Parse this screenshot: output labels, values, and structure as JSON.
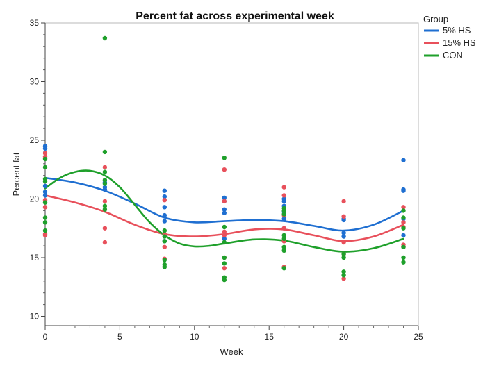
{
  "chart_data": {
    "type": "scatter",
    "title": "Percent fat across experimental week",
    "xlabel": "Week",
    "ylabel": "Percent fat",
    "xlim": [
      0,
      25
    ],
    "ylim": [
      9.2,
      35
    ],
    "x_ticks": [
      0,
      5,
      10,
      15,
      20,
      25
    ],
    "y_ticks": [
      10,
      15,
      20,
      25,
      30,
      35
    ],
    "legend_title": "Group",
    "legend_position": "right",
    "series": [
      {
        "name": "5% HS",
        "color": "#1f6fd1",
        "points": [
          {
            "x": 0,
            "y": 24.5
          },
          {
            "x": 0,
            "y": 24.3
          },
          {
            "x": 0,
            "y": 21.1
          },
          {
            "x": 0,
            "y": 20.6
          },
          {
            "x": 0,
            "y": 20.3
          },
          {
            "x": 4,
            "y": 21.4
          },
          {
            "x": 4,
            "y": 21.0
          },
          {
            "x": 4,
            "y": 20.8
          },
          {
            "x": 8,
            "y": 20.7
          },
          {
            "x": 8,
            "y": 20.2
          },
          {
            "x": 8,
            "y": 19.3
          },
          {
            "x": 8,
            "y": 18.6
          },
          {
            "x": 8,
            "y": 18.1
          },
          {
            "x": 8,
            "y": 16.4
          },
          {
            "x": 12,
            "y": 20.1
          },
          {
            "x": 12,
            "y": 19.8
          },
          {
            "x": 12,
            "y": 19.1
          },
          {
            "x": 12,
            "y": 18.8
          },
          {
            "x": 12,
            "y": 16.6
          },
          {
            "x": 16,
            "y": 20.0
          },
          {
            "x": 16,
            "y": 19.8
          },
          {
            "x": 16,
            "y": 19.4
          },
          {
            "x": 16,
            "y": 18.9
          },
          {
            "x": 16,
            "y": 18.3
          },
          {
            "x": 20,
            "y": 18.3
          },
          {
            "x": 20,
            "y": 18.2
          },
          {
            "x": 20,
            "y": 17.1
          },
          {
            "x": 20,
            "y": 16.8
          },
          {
            "x": 24,
            "y": 23.3
          },
          {
            "x": 24,
            "y": 20.8
          },
          {
            "x": 24,
            "y": 20.7
          },
          {
            "x": 24,
            "y": 18.3
          },
          {
            "x": 24,
            "y": 16.9
          }
        ],
        "smoother": [
          {
            "x": 0,
            "y": 21.8
          },
          {
            "x": 2,
            "y": 21.4
          },
          {
            "x": 4,
            "y": 20.7
          },
          {
            "x": 6,
            "y": 19.6
          },
          {
            "x": 8,
            "y": 18.4
          },
          {
            "x": 10,
            "y": 18.0
          },
          {
            "x": 12,
            "y": 18.1
          },
          {
            "x": 14,
            "y": 18.2
          },
          {
            "x": 16,
            "y": 18.1
          },
          {
            "x": 18,
            "y": 17.7
          },
          {
            "x": 20,
            "y": 17.3
          },
          {
            "x": 22,
            "y": 17.8
          },
          {
            "x": 24,
            "y": 19.0
          }
        ]
      },
      {
        "name": "15% HS",
        "color": "#e8505b",
        "points": [
          {
            "x": 0,
            "y": 23.9
          },
          {
            "x": 0,
            "y": 23.6
          },
          {
            "x": 0,
            "y": 19.9
          },
          {
            "x": 0,
            "y": 19.3
          },
          {
            "x": 0,
            "y": 17.0
          },
          {
            "x": 0,
            "y": 16.9
          },
          {
            "x": 4,
            "y": 22.7
          },
          {
            "x": 4,
            "y": 19.8
          },
          {
            "x": 4,
            "y": 17.5
          },
          {
            "x": 4,
            "y": 16.3
          },
          {
            "x": 8,
            "y": 19.9
          },
          {
            "x": 8,
            "y": 17.0
          },
          {
            "x": 8,
            "y": 15.9
          },
          {
            "x": 8,
            "y": 14.9
          },
          {
            "x": 12,
            "y": 22.5
          },
          {
            "x": 12,
            "y": 19.8
          },
          {
            "x": 12,
            "y": 17.2
          },
          {
            "x": 12,
            "y": 16.9
          },
          {
            "x": 12,
            "y": 15.0
          },
          {
            "x": 12,
            "y": 14.1
          },
          {
            "x": 16,
            "y": 21.0
          },
          {
            "x": 16,
            "y": 20.3
          },
          {
            "x": 16,
            "y": 18.6
          },
          {
            "x": 16,
            "y": 17.5
          },
          {
            "x": 16,
            "y": 16.4
          },
          {
            "x": 16,
            "y": 14.2
          },
          {
            "x": 20,
            "y": 19.8
          },
          {
            "x": 20,
            "y": 18.5
          },
          {
            "x": 20,
            "y": 16.3
          },
          {
            "x": 20,
            "y": 15.3
          },
          {
            "x": 20,
            "y": 13.2
          },
          {
            "x": 24,
            "y": 19.3
          },
          {
            "x": 24,
            "y": 18.0
          },
          {
            "x": 24,
            "y": 17.6
          },
          {
            "x": 24,
            "y": 16.1
          },
          {
            "x": 24,
            "y": 15.9
          }
        ],
        "smoother": [
          {
            "x": 0,
            "y": 20.3
          },
          {
            "x": 2,
            "y": 19.7
          },
          {
            "x": 4,
            "y": 18.9
          },
          {
            "x": 6,
            "y": 17.8
          },
          {
            "x": 8,
            "y": 17.0
          },
          {
            "x": 10,
            "y": 16.8
          },
          {
            "x": 12,
            "y": 17.0
          },
          {
            "x": 14,
            "y": 17.4
          },
          {
            "x": 16,
            "y": 17.4
          },
          {
            "x": 18,
            "y": 16.9
          },
          {
            "x": 20,
            "y": 16.4
          },
          {
            "x": 22,
            "y": 16.8
          },
          {
            "x": 24,
            "y": 17.8
          }
        ]
      },
      {
        "name": "CON",
        "color": "#1fa02b",
        "points": [
          {
            "x": 0,
            "y": 23.4
          },
          {
            "x": 0,
            "y": 22.7
          },
          {
            "x": 0,
            "y": 21.7
          },
          {
            "x": 0,
            "y": 21.5
          },
          {
            "x": 0,
            "y": 19.7
          },
          {
            "x": 0,
            "y": 18.4
          },
          {
            "x": 0,
            "y": 18.0
          },
          {
            "x": 0,
            "y": 17.3
          },
          {
            "x": 4,
            "y": 33.7
          },
          {
            "x": 4,
            "y": 24.0
          },
          {
            "x": 4,
            "y": 22.3
          },
          {
            "x": 4,
            "y": 21.6
          },
          {
            "x": 4,
            "y": 21.3
          },
          {
            "x": 4,
            "y": 19.4
          },
          {
            "x": 4,
            "y": 19.1
          },
          {
            "x": 8,
            "y": 17.3
          },
          {
            "x": 8,
            "y": 16.8
          },
          {
            "x": 8,
            "y": 16.4
          },
          {
            "x": 8,
            "y": 14.8
          },
          {
            "x": 8,
            "y": 14.4
          },
          {
            "x": 8,
            "y": 14.2
          },
          {
            "x": 12,
            "y": 23.5
          },
          {
            "x": 12,
            "y": 17.6
          },
          {
            "x": 12,
            "y": 16.3
          },
          {
            "x": 12,
            "y": 15.0
          },
          {
            "x": 12,
            "y": 14.5
          },
          {
            "x": 12,
            "y": 13.3
          },
          {
            "x": 12,
            "y": 13.1
          },
          {
            "x": 16,
            "y": 19.2
          },
          {
            "x": 16,
            "y": 19.0
          },
          {
            "x": 16,
            "y": 18.7
          },
          {
            "x": 16,
            "y": 16.9
          },
          {
            "x": 16,
            "y": 16.6
          },
          {
            "x": 16,
            "y": 15.9
          },
          {
            "x": 16,
            "y": 15.6
          },
          {
            "x": 16,
            "y": 14.1
          },
          {
            "x": 20,
            "y": 15.3
          },
          {
            "x": 20,
            "y": 15.0
          },
          {
            "x": 20,
            "y": 13.8
          },
          {
            "x": 20,
            "y": 13.5
          },
          {
            "x": 24,
            "y": 19.0
          },
          {
            "x": 24,
            "y": 18.4
          },
          {
            "x": 24,
            "y": 17.5
          },
          {
            "x": 24,
            "y": 15.9
          },
          {
            "x": 24,
            "y": 15.0
          },
          {
            "x": 24,
            "y": 14.6
          }
        ],
        "smoother": [
          {
            "x": 0,
            "y": 20.9
          },
          {
            "x": 1,
            "y": 21.8
          },
          {
            "x": 2,
            "y": 22.3
          },
          {
            "x": 3,
            "y": 22.4
          },
          {
            "x": 4,
            "y": 22.0
          },
          {
            "x": 5,
            "y": 21.0
          },
          {
            "x": 6,
            "y": 19.5
          },
          {
            "x": 7,
            "y": 18.0
          },
          {
            "x": 8,
            "y": 16.9
          },
          {
            "x": 9,
            "y": 16.2
          },
          {
            "x": 10,
            "y": 15.95
          },
          {
            "x": 11,
            "y": 16.0
          },
          {
            "x": 12,
            "y": 16.2
          },
          {
            "x": 14,
            "y": 16.55
          },
          {
            "x": 16,
            "y": 16.45
          },
          {
            "x": 18,
            "y": 15.9
          },
          {
            "x": 20,
            "y": 15.5
          },
          {
            "x": 22,
            "y": 15.8
          },
          {
            "x": 24,
            "y": 16.6
          }
        ]
      }
    ]
  }
}
